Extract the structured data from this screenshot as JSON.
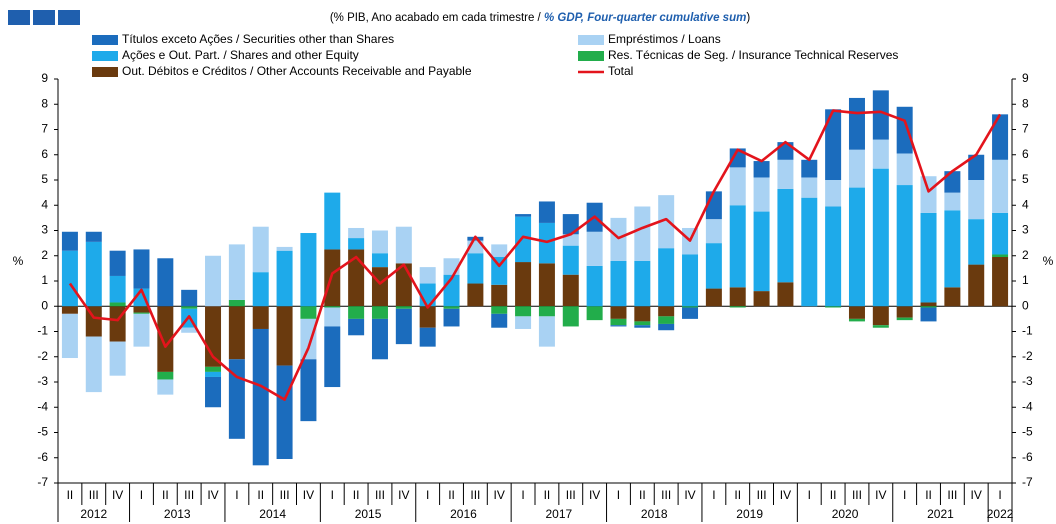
{
  "chart_data": {
    "type": "stacked_bar_line",
    "subtitle": [
      "(% PIB, Ano acabado em cada trimestre / ",
      "% GDP, Four-quarter cumulative sum",
      ")"
    ],
    "ylabel": "%",
    "y2label": "%",
    "groups": [
      {
        "label": "2012",
        "quarters": [
          "II",
          "III",
          "IV"
        ]
      },
      {
        "label": "2013",
        "quarters": [
          "I",
          "II",
          "III",
          "IV"
        ]
      },
      {
        "label": "2014",
        "quarters": [
          "I",
          "II",
          "III",
          "IV"
        ]
      },
      {
        "label": "2015",
        "quarters": [
          "I",
          "II",
          "III",
          "IV"
        ]
      },
      {
        "label": "2016",
        "quarters": [
          "I",
          "II",
          "III",
          "IV"
        ]
      },
      {
        "label": "2017",
        "quarters": [
          "I",
          "II",
          "III",
          "IV"
        ]
      },
      {
        "label": "2018",
        "quarters": [
          "I",
          "II",
          "III",
          "IV"
        ]
      },
      {
        "label": "2019",
        "quarters": [
          "I",
          "II",
          "III",
          "IV"
        ]
      },
      {
        "label": "2020",
        "quarters": [
          "I",
          "II",
          "III",
          "IV"
        ]
      },
      {
        "label": "2021",
        "quarters": [
          "I",
          "II",
          "III",
          "IV"
        ]
      },
      {
        "label": "2022",
        "quarters": [
          "I"
        ]
      }
    ],
    "series": [
      {
        "name": "Títulos exceto Ações / Securities other than Shares",
        "color": "#1b6cbd",
        "values": [
          0.75,
          0.4,
          1.0,
          1.55,
          1.9,
          0.65,
          -1.2,
          -3.15,
          -5.4,
          -3.7,
          -2.45,
          -2.4,
          -0.65,
          -1.6,
          -1.4,
          -0.75,
          -0.7,
          0.15,
          -0.55,
          0.1,
          0.85,
          0.8,
          1.15,
          -0.05,
          -0.1,
          -0.25,
          -0.45,
          1.1,
          0.75,
          0.65,
          0.7,
          0.7,
          2.8,
          2.05,
          1.95,
          1.85,
          -0.55,
          0.85,
          1.0,
          1.8
        ]
      },
      {
        "name": "Empréstimos / Loans",
        "color": "#a9d2f3",
        "values": [
          -1.75,
          -2.2,
          -1.35,
          -1.3,
          -0.6,
          -0.2,
          2.0,
          2.2,
          1.8,
          0.15,
          -1.6,
          -0.75,
          0.4,
          0.9,
          1.45,
          0.65,
          0.65,
          0.5,
          0.5,
          -0.5,
          -1.2,
          0.45,
          1.35,
          1.7,
          2.15,
          2.1,
          1.05,
          0.95,
          1.5,
          1.35,
          1.15,
          0.8,
          1.05,
          1.5,
          1.15,
          1.25,
          1.45,
          0.7,
          1.55,
          2.1
        ]
      },
      {
        "name": "Ações e Out. Part. / Shares and other Equity",
        "color": "#1eaaea",
        "values": [
          2.2,
          2.55,
          1.05,
          0.7,
          0,
          -0.75,
          -0.2,
          0,
          1.35,
          2.2,
          2.9,
          2.25,
          0.45,
          0.55,
          0,
          0.9,
          1.25,
          1.2,
          1.1,
          1.8,
          1.6,
          1.15,
          1.6,
          1.8,
          1.8,
          2.3,
          2.05,
          1.8,
          3.25,
          3.15,
          3.7,
          4.3,
          3.95,
          4.7,
          5.45,
          4.8,
          3.55,
          3.05,
          1.8,
          1.65
        ]
      },
      {
        "name": "Res. Técnicas de Seg. / Insurance Technical Reserves",
        "color": "#22ad4b",
        "values": [
          0,
          0,
          0.15,
          -0.05,
          -0.3,
          -0.1,
          -0.2,
          0.25,
          0,
          0,
          -0.5,
          -0.05,
          -0.5,
          -0.5,
          -0.1,
          0,
          -0.1,
          0,
          -0.3,
          -0.4,
          -0.4,
          -0.8,
          -0.55,
          -0.25,
          -0.15,
          -0.3,
          -0.05,
          0,
          -0.05,
          0,
          0,
          0,
          -0.05,
          -0.1,
          -0.1,
          -0.1,
          -0.05,
          0,
          0,
          0.1
        ]
      },
      {
        "name": "Out. Débitos e Créditos / Other Accounts Receivable and Payable",
        "color": "#6a3a0e",
        "values": [
          -0.3,
          -1.2,
          -1.4,
          -0.25,
          -2.6,
          0,
          -2.4,
          -2.1,
          -0.9,
          -2.35,
          0,
          2.25,
          2.25,
          1.55,
          1.7,
          -0.85,
          0,
          0.9,
          0.85,
          1.75,
          1.7,
          1.25,
          0,
          -0.5,
          -0.6,
          -0.4,
          0,
          0.7,
          0.75,
          0.6,
          0.95,
          0,
          0,
          -0.5,
          -0.75,
          -0.45,
          0.15,
          0.75,
          1.65,
          1.95
        ]
      }
    ],
    "total": {
      "name": "Total",
      "color": "#e3141c",
      "values": [
        0.9,
        -0.45,
        -0.55,
        0.65,
        -1.6,
        -0.4,
        -2.0,
        -2.8,
        -3.15,
        -3.7,
        -1.65,
        1.3,
        1.95,
        0.9,
        1.65,
        -0.05,
        1.1,
        2.75,
        1.6,
        2.75,
        2.55,
        2.85,
        3.55,
        2.7,
        3.1,
        3.45,
        2.6,
        4.55,
        6.2,
        5.75,
        6.5,
        5.8,
        7.75,
        7.65,
        7.7,
        7.35,
        4.55,
        5.35,
        6.0,
        7.6
      ]
    },
    "ylim": [
      -7,
      9
    ],
    "yticks": [
      -7,
      -6,
      -5,
      -4,
      -3,
      -2,
      -1,
      0,
      1,
      2,
      3,
      4,
      5,
      6,
      7,
      8,
      9
    ],
    "y2lim": [
      -7,
      9
    ],
    "y2ticks": [
      -7,
      -6,
      -5,
      -4,
      -3,
      -2,
      -1,
      0,
      1,
      2,
      3,
      4,
      5,
      6,
      7,
      8,
      9
    ]
  }
}
